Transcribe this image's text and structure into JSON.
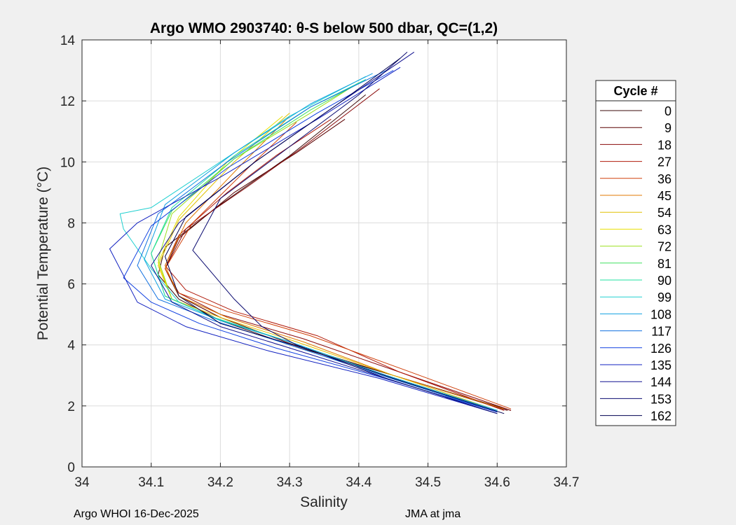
{
  "figure": {
    "footer_left": "Argo WHOI 16-Dec-2025",
    "footer_right": "JMA at jma"
  },
  "chart_data": {
    "type": "line",
    "title": "Argo WMO 2903740: θ-S below 500 dbar,  QC=(1,2)",
    "xlabel": "Salinity",
    "ylabel": "Potential Temperature (°C)",
    "xlim": [
      34,
      34.7
    ],
    "ylim": [
      0,
      14
    ],
    "xticks": [
      "34",
      "34.1",
      "34.2",
      "34.3",
      "34.4",
      "34.5",
      "34.6",
      "34.7"
    ],
    "yticks": [
      "0",
      "2",
      "4",
      "6",
      "8",
      "10",
      "12",
      "14"
    ],
    "grid": true,
    "legend": {
      "title": "Cycle #",
      "placement": "outside-right",
      "entries": [
        "0",
        "9",
        "18",
        "27",
        "36",
        "45",
        "54",
        "63",
        "72",
        "81",
        "90",
        "99",
        "108",
        "117",
        "126",
        "135",
        "144",
        "153",
        "162"
      ],
      "colors": [
        "#3b0a0a",
        "#5a0000",
        "#8a0a0a",
        "#b01a0a",
        "#d0400a",
        "#e07a00",
        "#e0c000",
        "#e8e000",
        "#9be020",
        "#40e060",
        "#20e0a0",
        "#20d0d0",
        "#10a0e0",
        "#1070e0",
        "#1040e0",
        "#1020c0",
        "#101090",
        "#0a0a70",
        "#000050"
      ]
    },
    "series": [
      {
        "name": "0",
        "x": [
          34.62,
          34.45,
          34.3,
          34.2,
          34.14,
          34.11,
          34.12,
          34.2,
          34.3,
          34.41
        ],
        "y": [
          1.85,
          3.0,
          4.0,
          4.8,
          5.5,
          6.3,
          7.2,
          8.6,
          10.2,
          12.2
        ]
      },
      {
        "name": "9",
        "x": [
          34.615,
          34.45,
          34.3,
          34.2,
          34.14,
          34.12,
          34.14,
          34.22,
          34.31,
          34.38
        ],
        "y": [
          1.85,
          3.0,
          4.05,
          4.9,
          5.6,
          6.5,
          7.5,
          9.0,
          10.3,
          11.4
        ]
      },
      {
        "name": "18",
        "x": [
          34.62,
          34.46,
          34.32,
          34.2,
          34.14,
          34.12,
          34.15,
          34.24,
          34.32,
          34.43
        ],
        "y": [
          1.85,
          3.1,
          4.2,
          5.0,
          5.7,
          6.5,
          7.8,
          9.2,
          10.5,
          12.4
        ]
      },
      {
        "name": "27",
        "x": [
          34.61,
          34.46,
          34.34,
          34.22,
          34.15,
          34.12,
          34.14,
          34.21,
          34.28,
          34.36
        ],
        "y": [
          1.85,
          3.1,
          4.3,
          5.1,
          5.8,
          6.6,
          7.6,
          9.0,
          10.2,
          11.4
        ]
      },
      {
        "name": "36",
        "x": [
          34.62,
          34.47,
          34.33,
          34.21,
          34.14,
          34.12,
          34.16,
          34.24,
          34.31
        ],
        "y": [
          1.9,
          3.15,
          4.3,
          5.1,
          5.7,
          6.5,
          8.0,
          9.8,
          11.3
        ]
      },
      {
        "name": "45",
        "x": [
          34.61,
          34.45,
          34.32,
          34.21,
          34.14,
          34.12,
          34.15,
          34.23,
          34.3
        ],
        "y": [
          1.9,
          3.0,
          4.1,
          4.9,
          5.6,
          6.6,
          8.0,
          9.9,
          11.5
        ]
      },
      {
        "name": "54",
        "x": [
          34.6,
          34.45,
          34.31,
          34.2,
          34.13,
          34.11,
          34.14,
          34.22,
          34.3
        ],
        "y": [
          1.85,
          3.0,
          4.1,
          4.9,
          5.5,
          6.6,
          8.1,
          10.0,
          11.6
        ]
      },
      {
        "name": "63",
        "x": [
          34.6,
          34.44,
          34.3,
          34.19,
          34.13,
          34.11,
          34.14,
          34.21,
          34.29
        ],
        "y": [
          1.85,
          3.0,
          4.1,
          4.9,
          5.5,
          6.7,
          8.2,
          10.0,
          11.5
        ]
      },
      {
        "name": "72",
        "x": [
          34.6,
          34.44,
          34.3,
          34.19,
          34.13,
          34.11,
          34.13,
          34.22,
          34.33,
          34.4
        ],
        "y": [
          1.85,
          3.0,
          4.1,
          4.9,
          5.5,
          6.8,
          8.3,
          10.1,
          11.6,
          12.6
        ]
      },
      {
        "name": "81",
        "x": [
          34.6,
          34.44,
          34.3,
          34.19,
          34.12,
          34.1,
          34.13,
          34.22,
          34.33,
          34.41
        ],
        "y": [
          1.85,
          3.0,
          4.1,
          4.9,
          5.6,
          7.0,
          8.4,
          10.1,
          11.7,
          12.7
        ]
      },
      {
        "name": "90",
        "x": [
          34.6,
          34.44,
          34.3,
          34.19,
          34.12,
          34.1,
          34.13,
          34.22,
          34.33,
          34.41
        ],
        "y": [
          1.85,
          3.0,
          4.1,
          4.9,
          5.6,
          7.0,
          8.5,
          10.2,
          11.8,
          12.7
        ]
      },
      {
        "name": "99",
        "x": [
          34.6,
          34.44,
          34.3,
          34.2,
          34.14,
          34.1,
          34.06,
          34.055,
          34.1,
          34.2,
          34.3,
          34.41
        ],
        "y": [
          1.85,
          3.0,
          4.1,
          4.8,
          5.4,
          6.5,
          7.8,
          8.3,
          8.5,
          10.0,
          11.5,
          12.8
        ]
      },
      {
        "name": "108",
        "x": [
          34.6,
          34.44,
          34.3,
          34.2,
          34.12,
          34.09,
          34.12,
          34.22,
          34.33,
          34.42
        ],
        "y": [
          1.85,
          3.0,
          4.1,
          4.8,
          5.5,
          6.8,
          8.6,
          10.3,
          11.9,
          12.9
        ]
      },
      {
        "name": "117",
        "x": [
          34.6,
          34.44,
          34.3,
          34.19,
          34.11,
          34.08,
          34.11,
          34.21,
          34.33,
          34.44
        ],
        "y": [
          1.8,
          2.95,
          4.0,
          4.8,
          5.5,
          6.6,
          8.3,
          10.0,
          11.8,
          13.0
        ]
      },
      {
        "name": "126",
        "x": [
          34.6,
          34.43,
          34.28,
          34.17,
          34.1,
          34.06,
          34.1,
          34.21,
          34.34,
          34.45
        ],
        "y": [
          1.8,
          2.95,
          3.9,
          4.7,
          5.4,
          6.2,
          7.9,
          9.8,
          11.6,
          13.0
        ]
      },
      {
        "name": "135",
        "x": [
          34.6,
          34.43,
          34.27,
          34.15,
          34.08,
          34.04,
          34.08,
          34.2,
          34.34,
          34.46
        ],
        "y": [
          1.75,
          2.9,
          3.8,
          4.6,
          5.4,
          7.15,
          8.0,
          9.5,
          11.4,
          13.1
        ]
      },
      {
        "name": "144",
        "x": [
          34.6,
          34.44,
          34.3,
          34.2,
          34.13,
          34.1,
          34.14,
          34.25,
          34.37,
          34.48
        ],
        "y": [
          1.75,
          2.9,
          3.9,
          4.6,
          5.4,
          6.6,
          8.0,
          10.0,
          11.9,
          13.6
        ]
      },
      {
        "name": "153",
        "x": [
          34.6,
          34.44,
          34.31,
          34.26,
          34.22,
          34.16,
          34.2,
          34.3,
          34.4,
          34.47
        ],
        "y": [
          1.75,
          2.9,
          4.0,
          4.6,
          5.5,
          7.1,
          8.8,
          10.5,
          12.2,
          13.6
        ]
      },
      {
        "name": "162",
        "x": [
          34.61,
          34.45,
          34.32,
          34.2,
          34.14,
          34.12,
          34.15,
          34.25,
          34.37,
          34.46
        ],
        "y": [
          1.75,
          2.9,
          3.9,
          4.7,
          5.6,
          6.9,
          8.2,
          10.0,
          11.9,
          13.4
        ]
      }
    ]
  }
}
